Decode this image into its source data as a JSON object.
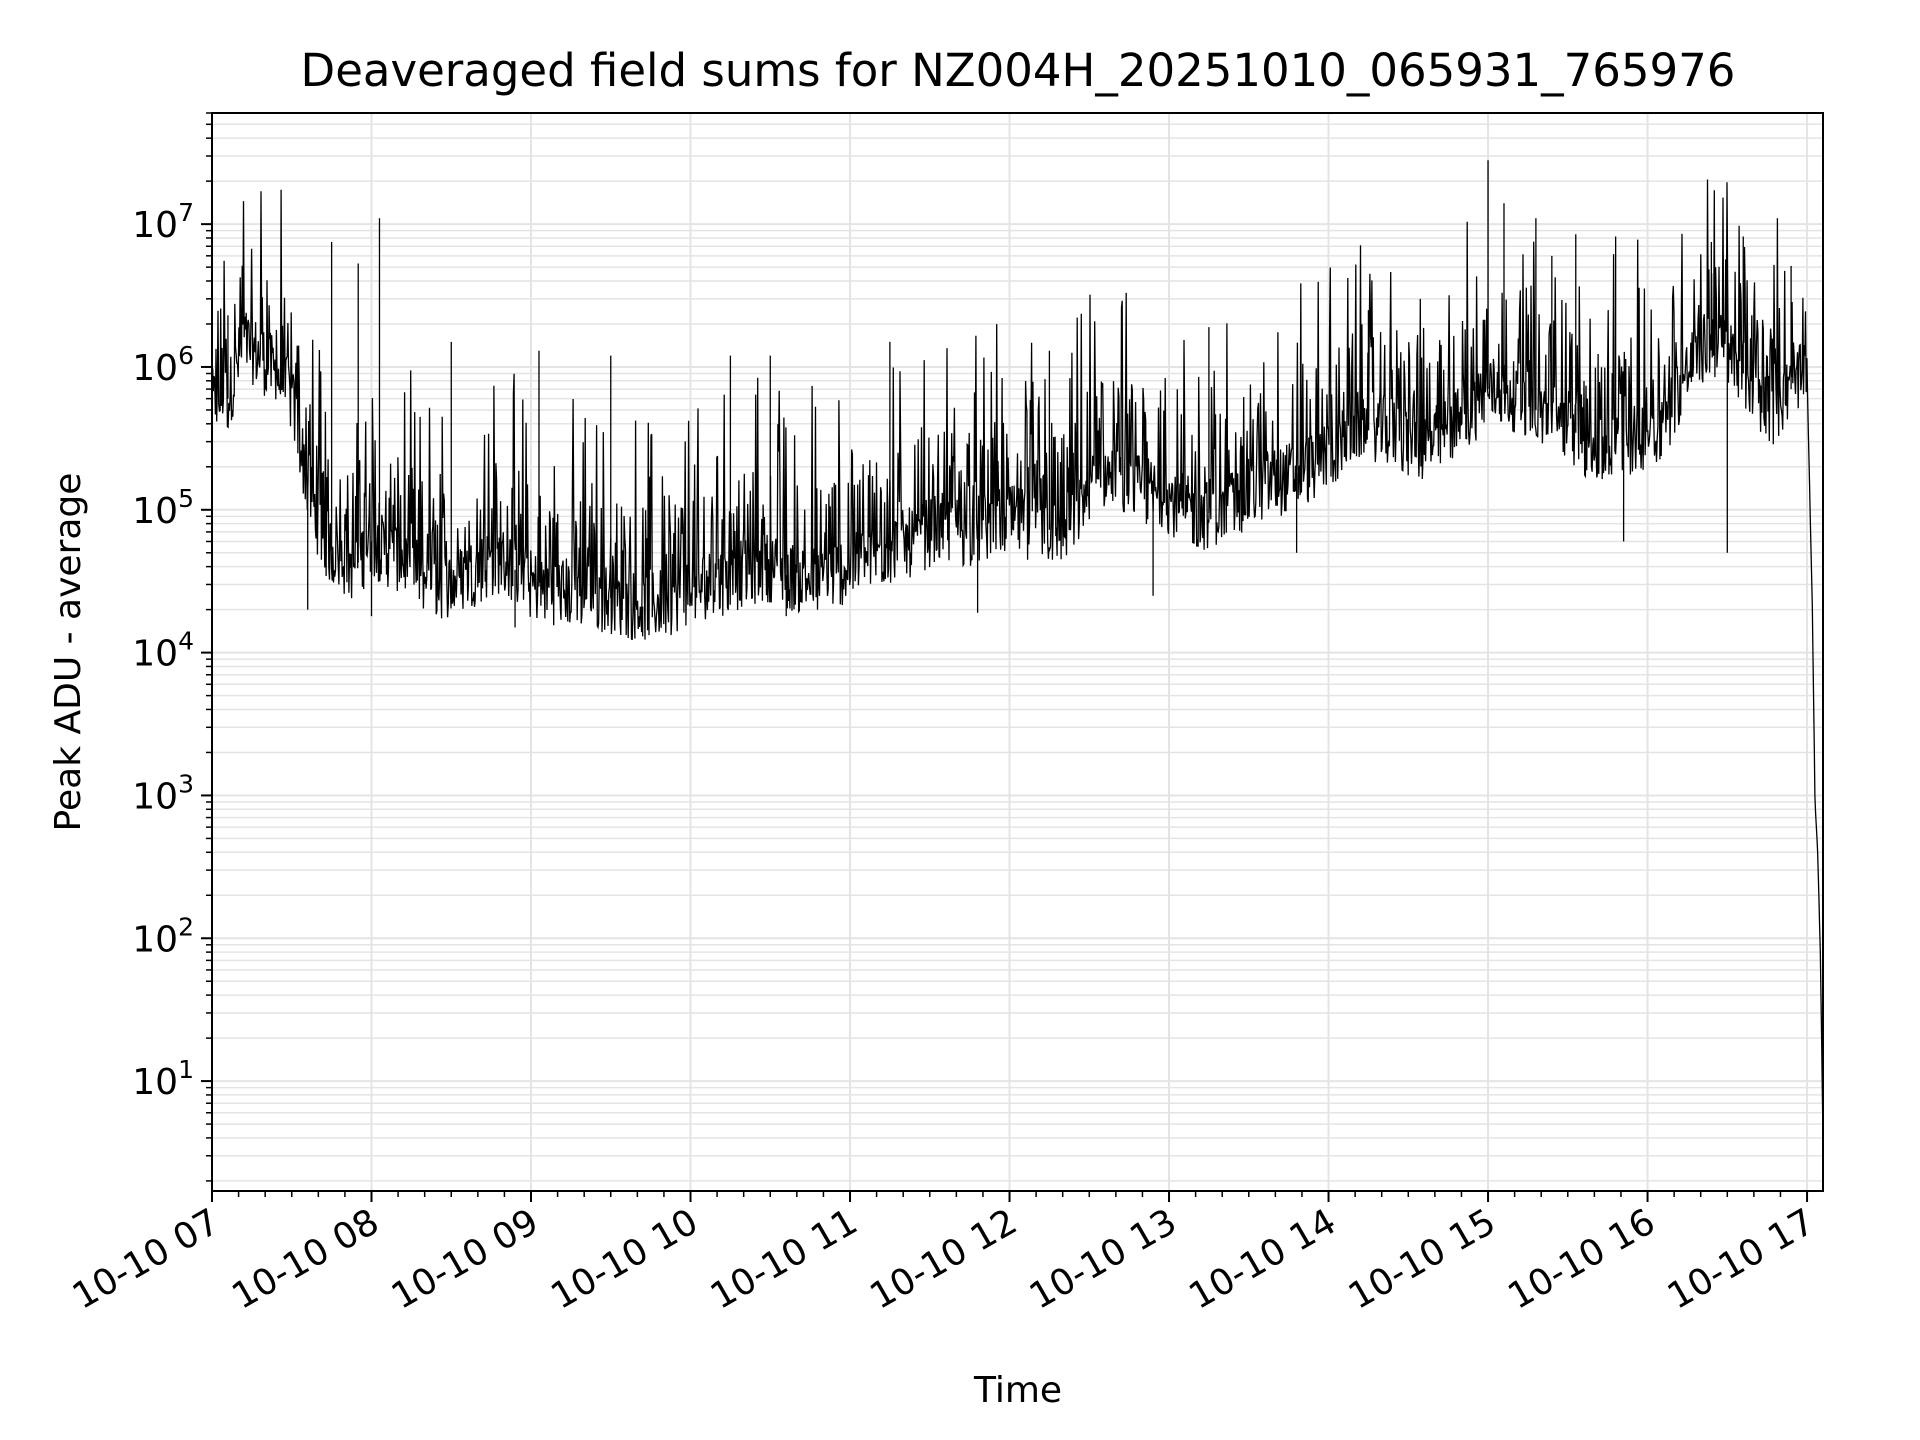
{
  "chart_data": {
    "type": "line",
    "title": "Deaveraged field sums for NZ004H_20251010_065931_765976",
    "xlabel": "Time",
    "ylabel": "Peak ADU - average",
    "yscale": "log",
    "ylim": [
      1.7,
      60000000
    ],
    "xlim": [
      "10-10 07:00",
      "10-10 17:06"
    ],
    "grid": "major and minor",
    "line_color": "#000000",
    "grid_color": "#e4e4e4",
    "x_ticks": [
      {
        "label": "10-10 07",
        "value": "10-10 07:00"
      },
      {
        "label": "10-10 08",
        "value": "10-10 08:00"
      },
      {
        "label": "10-10 09",
        "value": "10-10 09:00"
      },
      {
        "label": "10-10 10",
        "value": "10-10 10:00"
      },
      {
        "label": "10-10 11",
        "value": "10-10 11:00"
      },
      {
        "label": "10-10 12",
        "value": "10-10 12:00"
      },
      {
        "label": "10-10 13",
        "value": "10-10 13:00"
      },
      {
        "label": "10-10 14",
        "value": "10-10 14:00"
      },
      {
        "label": "10-10 15",
        "value": "10-10 15:00"
      },
      {
        "label": "10-10 16",
        "value": "10-10 16:00"
      },
      {
        "label": "10-10 17",
        "value": "10-10 17:00"
      }
    ],
    "y_ticks": [
      {
        "base": "10",
        "exp": "1",
        "value": 10
      },
      {
        "base": "10",
        "exp": "2",
        "value": 100
      },
      {
        "base": "10",
        "exp": "3",
        "value": 1000
      },
      {
        "base": "10",
        "exp": "4",
        "value": 10000
      },
      {
        "base": "10",
        "exp": "5",
        "value": 100000
      },
      {
        "base": "10",
        "exp": "6",
        "value": 1000000
      },
      {
        "base": "10",
        "exp": "7",
        "value": 10000000
      }
    ],
    "series": [
      {
        "x": [
          "10-10 07:00",
          "10-10 07:06",
          "10-10 07:12",
          "10-10 07:18",
          "10-10 07:24",
          "10-10 07:30",
          "10-10 07:36",
          "10-10 07:42",
          "10-10 07:48",
          "10-10 07:54",
          "10-10 08:00",
          "10-10 08:06",
          "10-10 08:12",
          "10-10 08:18",
          "10-10 08:24",
          "10-10 08:30",
          "10-10 08:36",
          "10-10 08:42",
          "10-10 08:48",
          "10-10 08:54",
          "10-10 09:00",
          "10-10 09:06",
          "10-10 09:12",
          "10-10 09:18",
          "10-10 09:24",
          "10-10 09:30",
          "10-10 09:36",
          "10-10 09:42",
          "10-10 09:48",
          "10-10 09:54",
          "10-10 10:00",
          "10-10 10:06",
          "10-10 10:12",
          "10-10 10:18",
          "10-10 10:24",
          "10-10 10:30",
          "10-10 10:36",
          "10-10 10:42",
          "10-10 10:48",
          "10-10 10:54",
          "10-10 11:00",
          "10-10 11:06",
          "10-10 11:12",
          "10-10 11:18",
          "10-10 11:24",
          "10-10 11:30",
          "10-10 11:36",
          "10-10 11:42",
          "10-10 11:48",
          "10-10 11:54",
          "10-10 12:00",
          "10-10 12:06",
          "10-10 12:12",
          "10-10 12:18",
          "10-10 12:24",
          "10-10 12:30",
          "10-10 12:36",
          "10-10 12:42",
          "10-10 12:48",
          "10-10 12:54",
          "10-10 13:00",
          "10-10 13:06",
          "10-10 13:12",
          "10-10 13:18",
          "10-10 13:24",
          "10-10 13:30",
          "10-10 13:36",
          "10-10 13:42",
          "10-10 13:48",
          "10-10 13:54",
          "10-10 14:00",
          "10-10 14:06",
          "10-10 14:12",
          "10-10 14:18",
          "10-10 14:24",
          "10-10 14:30",
          "10-10 14:36",
          "10-10 14:42",
          "10-10 14:48",
          "10-10 14:54",
          "10-10 15:00",
          "10-10 15:06",
          "10-10 15:12",
          "10-10 15:18",
          "10-10 15:24",
          "10-10 15:30",
          "10-10 15:36",
          "10-10 15:42",
          "10-10 15:48",
          "10-10 15:54",
          "10-10 16:00",
          "10-10 16:06",
          "10-10 16:12",
          "10-10 16:18",
          "10-10 16:24",
          "10-10 16:30",
          "10-10 16:36",
          "10-10 16:42",
          "10-10 16:48",
          "10-10 16:54",
          "10-10 17:00",
          "10-10 17:02",
          "10-10 17:03",
          "10-10 17:04",
          "10-10 17:05",
          "10-10 17:06"
        ],
        "values": [
          550000,
          600000,
          1500000,
          1200000,
          900000,
          600000,
          150000,
          60000,
          45000,
          40000,
          60000,
          50000,
          45000,
          35000,
          30000,
          30000,
          35000,
          40000,
          45000,
          38000,
          30000,
          28000,
          27000,
          26000,
          25000,
          24000,
          22000,
          21000,
          22000,
          24000,
          28000,
          30000,
          32000,
          35000,
          38000,
          40000,
          35000,
          33000,
          32000,
          35000,
          40000,
          45000,
          50000,
          55000,
          60000,
          70000,
          75000,
          70000,
          72000,
          80000,
          85000,
          80000,
          75000,
          70000,
          80000,
          150000,
          180000,
          150000,
          140000,
          130000,
          120000,
          100000,
          90000,
          100000,
          110000,
          130000,
          150000,
          160000,
          180000,
          200000,
          250000,
          300000,
          400000,
          380000,
          350000,
          300000,
          280000,
          320000,
          400000,
          500000,
          700000,
          650000,
          600000,
          500000,
          450000,
          400000,
          300000,
          250000,
          280000,
          300000,
          350000,
          400000,
          700000,
          1200000,
          1500000,
          1300000,
          900000,
          600000,
          500000,
          700000,
          900000,
          20000,
          900,
          400,
          80,
          4
        ],
        "peaks": [
          {
            "x": "10-10 07:06",
            "value": 2300000
          },
          {
            "x": "10-10 07:45",
            "value": 7500000
          },
          {
            "x": "10-10 07:55",
            "value": 5300000
          },
          {
            "x": "10-10 08:03",
            "value": 11000000
          },
          {
            "x": "10-10 08:30",
            "value": 1500000
          },
          {
            "x": "10-10 09:03",
            "value": 1300000
          },
          {
            "x": "10-10 09:30",
            "value": 1200000
          },
          {
            "x": "10-10 10:15",
            "value": 1200000
          },
          {
            "x": "10-10 10:30",
            "value": 1200000
          },
          {
            "x": "10-10 11:15",
            "value": 1500000
          },
          {
            "x": "10-10 12:15",
            "value": 1300000
          },
          {
            "x": "10-10 13:15",
            "value": 1900000
          },
          {
            "x": "10-10 14:15",
            "value": 2500000
          },
          {
            "x": "10-10 15:00",
            "value": 28000000
          },
          {
            "x": "10-10 15:06",
            "value": 14000000
          },
          {
            "x": "10-10 15:18",
            "value": 11000000
          },
          {
            "x": "10-10 15:24",
            "value": 6000000
          },
          {
            "x": "10-10 15:33",
            "value": 8500000
          },
          {
            "x": "10-10 15:48",
            "value": 8200000
          },
          {
            "x": "10-10 16:24",
            "value": 7500000
          },
          {
            "x": "10-10 16:30",
            "value": 8500000
          },
          {
            "x": "10-10 16:36",
            "value": 8200000
          },
          {
            "x": "10-10 16:54",
            "value": 5100000
          }
        ],
        "troughs": [
          {
            "x": "10-10 07:36",
            "value": 20000
          },
          {
            "x": "10-10 08:00",
            "value": 18000
          },
          {
            "x": "10-10 08:54",
            "value": 15000
          },
          {
            "x": "10-10 09:42",
            "value": 13000
          },
          {
            "x": "10-10 10:36",
            "value": 18000
          },
          {
            "x": "10-10 11:48",
            "value": 19000
          },
          {
            "x": "10-10 12:54",
            "value": 25000
          },
          {
            "x": "10-10 13:48",
            "value": 50000
          },
          {
            "x": "10-10 15:51",
            "value": 60000
          },
          {
            "x": "10-10 16:30",
            "value": 50000
          }
        ]
      }
    ]
  }
}
